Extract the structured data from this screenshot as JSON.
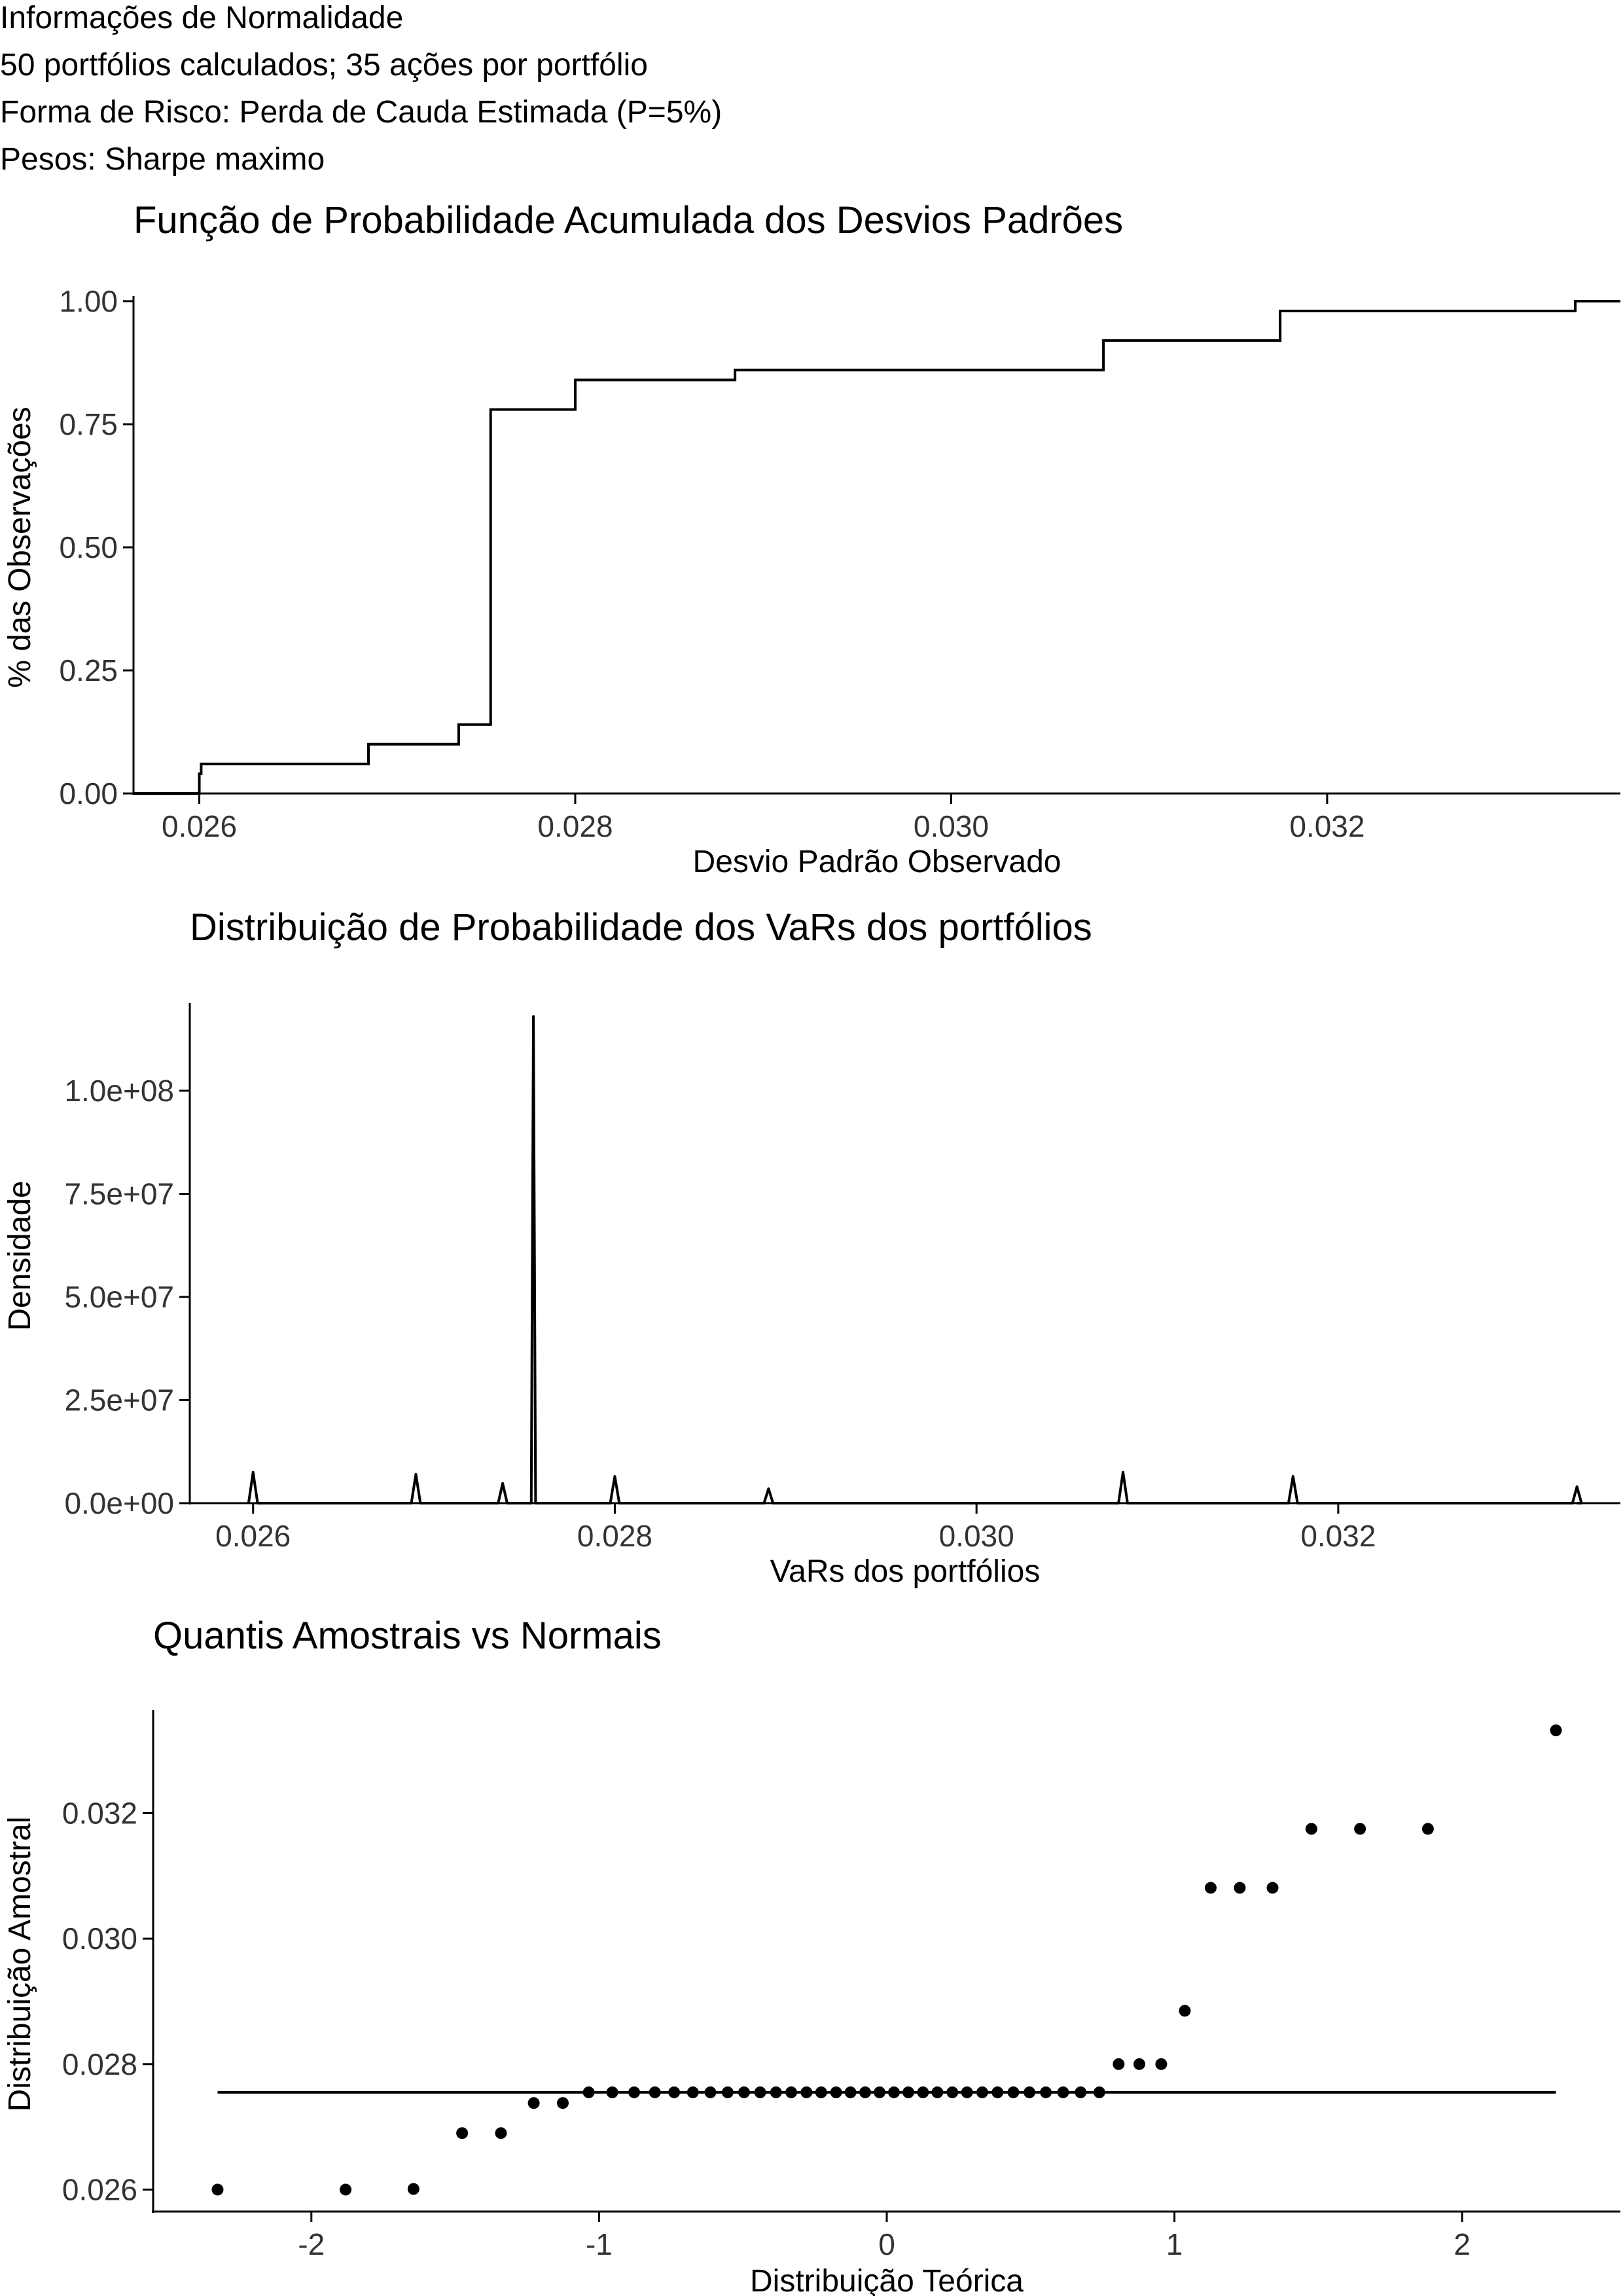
{
  "header": {
    "lines": [
      "Informações de Normalidade",
      "50 portfólios calculados; 35 ações por portfólio",
      "Forma de Risco: Perda de Cauda Estimada (P=5%)",
      "Pesos: Sharpe maximo"
    ]
  },
  "chart_data": [
    {
      "type": "line",
      "title": "Função de Probabilidade Acumulada dos Desvios Padrões",
      "xlabel": "Desvio Padrão Observado",
      "ylabel": "% das Observações",
      "xlim": [
        0.02565,
        0.03356
      ],
      "ylim": [
        0,
        1
      ],
      "xticks": [
        "0.026",
        "0.028",
        "0.030",
        "0.032"
      ],
      "xtick_values": [
        0.026,
        0.028,
        0.03,
        0.032
      ],
      "yticks": [
        "0.00",
        "0.25",
        "0.50",
        "0.75",
        "1.00"
      ],
      "ytick_values": [
        0,
        0.25,
        0.5,
        0.75,
        1
      ],
      "step_x": [
        0.026,
        0.02601,
        0.0269,
        0.02738,
        0.02755,
        0.028,
        0.02885,
        0.03081,
        0.03175,
        0.03332
      ],
      "step_y": [
        0.04,
        0.06,
        0.1,
        0.14,
        0.78,
        0.84,
        0.86,
        0.92,
        0.98,
        1.0
      ]
    },
    {
      "type": "line",
      "title": "Distribuição de Probabilidade dos VaRs dos portfólios",
      "xlabel": "VaRs dos portfólios",
      "ylabel": "Densidade",
      "xlim": [
        0.02565,
        0.03356
      ],
      "ylim": [
        0,
        120000000
      ],
      "xticks": [
        "0.026",
        "0.028",
        "0.030",
        "0.032"
      ],
      "xtick_values": [
        0.026,
        0.028,
        0.03,
        0.032
      ],
      "yticks": [
        "0.0e+00",
        "2.5e+07",
        "5.0e+07",
        "7.5e+07",
        "1.0e+08"
      ],
      "ytick_values": [
        0,
        25000000,
        50000000,
        75000000,
        100000000
      ],
      "peaks": [
        {
          "x": 0.026,
          "y": 7500000
        },
        {
          "x": 0.0269,
          "y": 7000000
        },
        {
          "x": 0.02738,
          "y": 4800000
        },
        {
          "x": 0.02755,
          "y": 118000000
        },
        {
          "x": 0.028,
          "y": 6500000
        },
        {
          "x": 0.02885,
          "y": 3500000
        },
        {
          "x": 0.03081,
          "y": 7500000
        },
        {
          "x": 0.03175,
          "y": 6500000
        },
        {
          "x": 0.03332,
          "y": 4000000
        }
      ]
    },
    {
      "type": "scatter",
      "title": "Quantis Amostrais vs Normais",
      "xlabel": "Distribuição Teórica",
      "ylabel": "Distribuição Amostral",
      "xlim": [
        -2.55,
        2.55
      ],
      "ylim": [
        0.02565,
        0.03356
      ],
      "xticks": [
        "-2",
        "-1",
        "0",
        "1",
        "2"
      ],
      "xtick_values": [
        -2,
        -1,
        0,
        1,
        2
      ],
      "yticks": [
        "0.026",
        "0.028",
        "0.030",
        "0.032"
      ],
      "ytick_values": [
        0.026,
        0.028,
        0.03,
        0.032
      ],
      "x": [
        -2.326,
        -1.881,
        -1.645,
        -1.476,
        -1.341,
        -1.227,
        -1.126,
        -1.036,
        -0.954,
        -0.878,
        -0.806,
        -0.739,
        -0.674,
        -0.613,
        -0.553,
        -0.496,
        -0.44,
        -0.385,
        -0.332,
        -0.279,
        -0.228,
        -0.176,
        -0.126,
        -0.075,
        -0.025,
        0.025,
        0.075,
        0.126,
        0.176,
        0.228,
        0.279,
        0.332,
        0.385,
        0.44,
        0.496,
        0.553,
        0.613,
        0.674,
        0.739,
        0.806,
        0.878,
        0.954,
        1.036,
        1.126,
        1.227,
        1.341,
        1.476,
        1.645,
        1.881,
        2.326
      ],
      "y": [
        0.026,
        0.026,
        0.02601,
        0.0269,
        0.0269,
        0.02738,
        0.02738,
        0.02755,
        0.02755,
        0.02755,
        0.02755,
        0.02755,
        0.02755,
        0.02755,
        0.02755,
        0.02755,
        0.02755,
        0.02755,
        0.02755,
        0.02755,
        0.02755,
        0.02755,
        0.02755,
        0.02755,
        0.02755,
        0.02755,
        0.02755,
        0.02755,
        0.02755,
        0.02755,
        0.02755,
        0.02755,
        0.02755,
        0.02755,
        0.02755,
        0.02755,
        0.02755,
        0.02755,
        0.02755,
        0.028,
        0.028,
        0.028,
        0.02885,
        0.03081,
        0.03081,
        0.03081,
        0.03175,
        0.03175,
        0.03175,
        0.03332
      ],
      "reference_line": {
        "x": [
          -2.326,
          2.326
        ],
        "y": [
          0.02755,
          0.02755
        ]
      }
    }
  ]
}
